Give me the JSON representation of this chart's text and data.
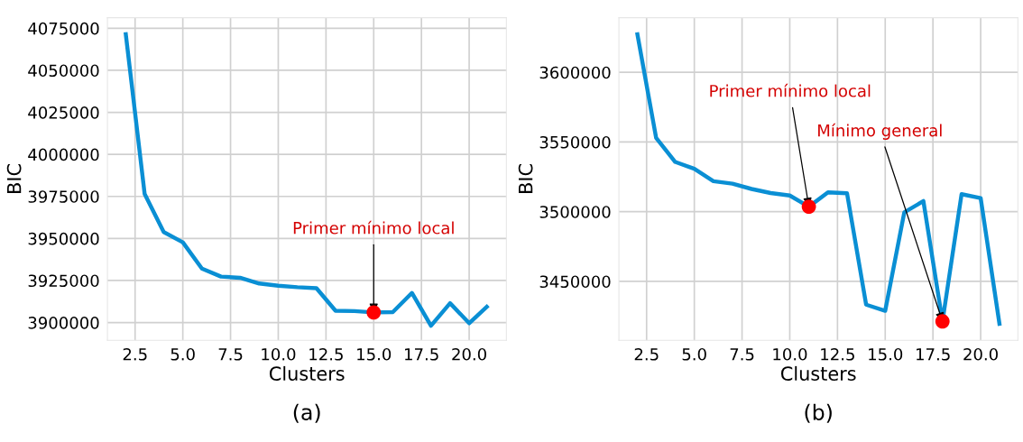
{
  "chart_data": [
    {
      "type": "line",
      "title": "(a)",
      "xlabel": "Clusters",
      "ylabel": "BIC",
      "x": [
        2,
        3,
        4,
        5,
        6,
        7,
        8,
        9,
        10,
        11,
        12,
        13,
        14,
        15,
        16,
        17,
        18,
        19,
        20,
        21
      ],
      "series": [
        {
          "color": "#0a8fd4",
          "values": [
            4072600,
            3976500,
            3953800,
            3947700,
            3932100,
            3927300,
            3926600,
            3923200,
            3921900,
            3921000,
            3920400,
            3907000,
            3906800,
            3906000,
            3906200,
            3917600,
            3898100,
            3911500,
            3899600,
            3910200
          ]
        },
        {
          "type": "scatter",
          "color": "#ff0000",
          "x": [
            15
          ],
          "values": [
            3906000
          ]
        }
      ],
      "annotations": [
        {
          "text": "Primer mínimo local",
          "x": 15,
          "y": 3906000
        }
      ],
      "xlim": [
        1.05,
        21.95
      ],
      "ylim": [
        3889400,
        4081300
      ],
      "xticks": [
        {
          "value": 2.5,
          "label": "2.5"
        },
        {
          "value": 5.0,
          "label": "5.0"
        },
        {
          "value": 7.5,
          "label": "7.5"
        },
        {
          "value": 10.0,
          "label": "10.0"
        },
        {
          "value": 12.5,
          "label": "12.5"
        },
        {
          "value": 15.0,
          "label": "15.0"
        },
        {
          "value": 17.5,
          "label": "17.5"
        },
        {
          "value": 20.0,
          "label": "20.0"
        }
      ],
      "yticks": [
        3900000,
        3925000,
        3950000,
        3975000,
        4000000,
        4025000,
        4050000,
        4075000
      ],
      "grid": true,
      "legend": false
    },
    {
      "type": "line",
      "title": "(b)",
      "xlabel": "Clusters",
      "ylabel": "BIC",
      "x": [
        2,
        3,
        4,
        5,
        6,
        7,
        8,
        9,
        10,
        11,
        12,
        13,
        14,
        15,
        16,
        17,
        18,
        19,
        20,
        21
      ],
      "series": [
        {
          "color": "#0a8fd4",
          "values": [
            3628700,
            3553000,
            3535700,
            3530800,
            3521900,
            3520100,
            3516300,
            3513400,
            3511600,
            3503600,
            3513900,
            3513200,
            3433300,
            3428900,
            3499600,
            3507600,
            3421300,
            3512600,
            3509700,
            3418200
          ]
        },
        {
          "type": "scatter",
          "color": "#ff0000",
          "x": [
            11,
            18
          ],
          "values": [
            3503600,
            3421300
          ]
        }
      ],
      "annotations": [
        {
          "text": "Primer mínimo local",
          "x": 11,
          "y": 3503600
        },
        {
          "text": "Mínimo general",
          "x": 18,
          "y": 3421300
        }
      ],
      "xlim": [
        1.05,
        21.95
      ],
      "ylim": [
        3407700,
        3639200
      ],
      "xticks": [
        {
          "value": 2.5,
          "label": "2.5"
        },
        {
          "value": 5.0,
          "label": "5.0"
        },
        {
          "value": 7.5,
          "label": "7.5"
        },
        {
          "value": 10.0,
          "label": "10.0"
        },
        {
          "value": 12.5,
          "label": "12.5"
        },
        {
          "value": 15.0,
          "label": "15.0"
        },
        {
          "value": 17.5,
          "label": "17.5"
        },
        {
          "value": 20.0,
          "label": "20.0"
        }
      ],
      "yticks": [
        3450000,
        3500000,
        3550000,
        3600000
      ],
      "grid": true,
      "legend": false
    }
  ]
}
